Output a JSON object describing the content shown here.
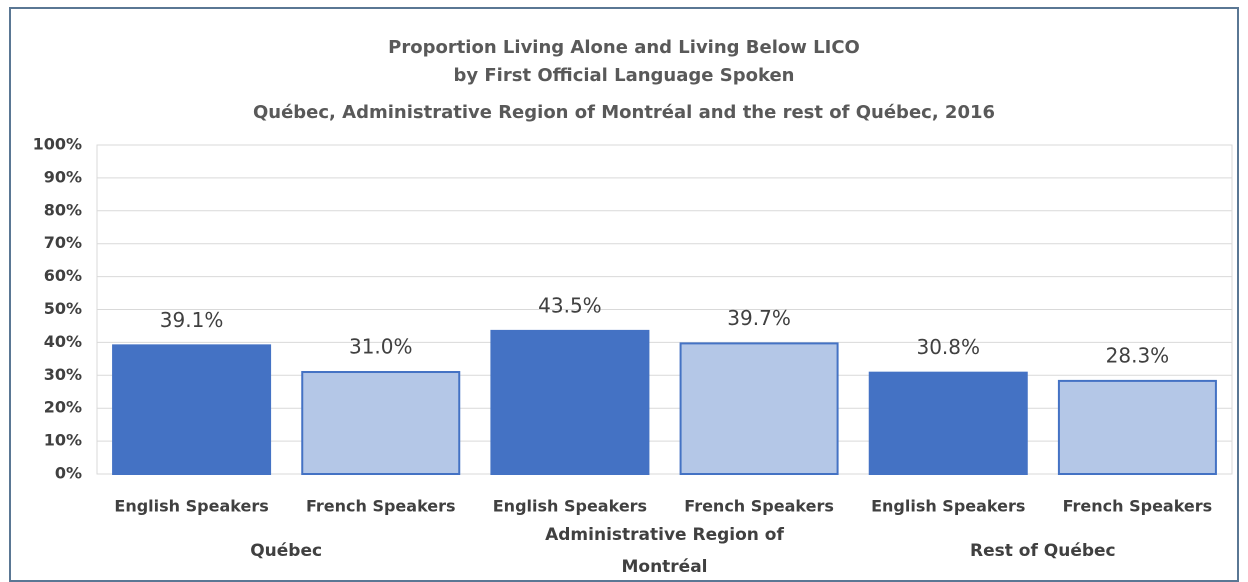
{
  "chart_data": {
    "type": "bar",
    "title": [
      "Proportion Living Alone and Living Below LICO",
      "by First Official Language Spoken",
      "Québec, Administrative Region of Montréal and the rest of Québec, 2016"
    ],
    "categories": [
      "English Speakers",
      "French Speakers",
      "English Speakers",
      "French Speakers",
      "English Speakers",
      "French Speakers"
    ],
    "group_labels": [
      "Québec",
      "Administrative Region of Montréal",
      "Rest of Québec"
    ],
    "values": [
      39.1,
      31.0,
      43.5,
      39.7,
      30.8,
      28.3
    ],
    "value_labels": [
      "39.1%",
      "31.0%",
      "43.5%",
      "39.7%",
      "30.8%",
      "28.3%"
    ],
    "colors": [
      "#4472c4",
      "#b4c7e7",
      "#4472c4",
      "#b4c7e7",
      "#4472c4",
      "#b4c7e7"
    ],
    "edge_color": "#4472c4",
    "ylim": [
      0,
      100
    ],
    "yticks": [
      {
        "value": 0,
        "label": "0%"
      },
      {
        "value": 10,
        "label": "10%"
      },
      {
        "value": 20,
        "label": "20%"
      },
      {
        "value": 30,
        "label": "30%"
      },
      {
        "value": 40,
        "label": "40%"
      },
      {
        "value": 50,
        "label": "50%"
      },
      {
        "value": 60,
        "label": "60%"
      },
      {
        "value": 70,
        "label": "70%"
      },
      {
        "value": 80,
        "label": "80%"
      },
      {
        "value": 90,
        "label": "90%"
      },
      {
        "value": 100,
        "label": "100%"
      }
    ],
    "grid": true
  }
}
